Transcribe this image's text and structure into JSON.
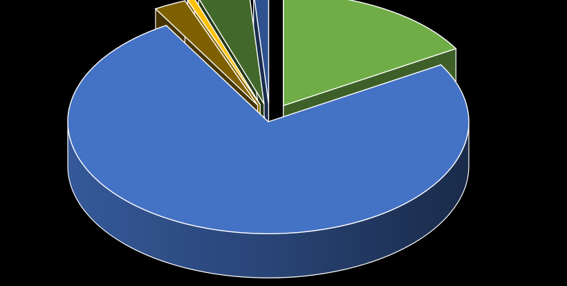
{
  "chart_data": {
    "type": "pie",
    "style": "3d-exploded",
    "title": "",
    "legend": "none",
    "slices": [
      {
        "value": 16.5,
        "color": "#70AD47"
      },
      {
        "value": 75.0,
        "color": "#4472C4"
      },
      {
        "value": 2.6,
        "color": "#7F6000"
      },
      {
        "value": 0.6,
        "color": "#FFC000"
      },
      {
        "value": 4.1,
        "color": "#43682B"
      },
      {
        "value": 1.2,
        "color": "#2F528F"
      }
    ]
  }
}
